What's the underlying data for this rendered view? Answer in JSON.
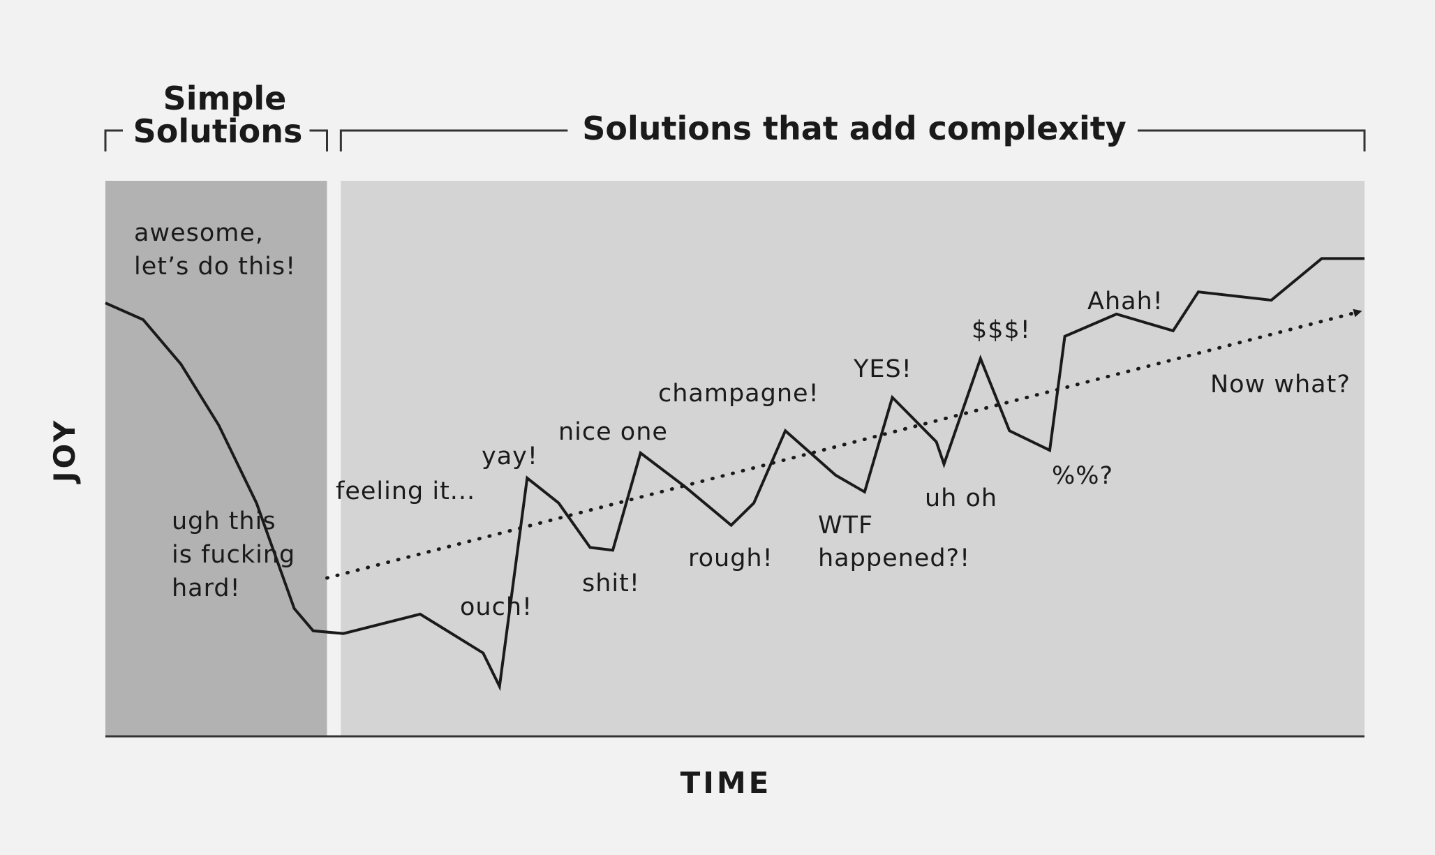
{
  "chart_data": {
    "type": "line",
    "xlabel": "TIME",
    "ylabel": "JOY",
    "xlim": [
      0,
      100
    ],
    "ylim": [
      0,
      100
    ],
    "grid": false,
    "colors": {
      "background": "#f2f2f2",
      "simple_region": "#b3b2b3",
      "complex_region": "#d5d4d5",
      "line": "#1a1a1a"
    },
    "regions": [
      {
        "name": "Simple Solutions",
        "x": [
          0,
          17.6
        ]
      },
      {
        "name": "Solutions that add complexity",
        "x": [
          18.7,
          100
        ]
      }
    ],
    "series": [
      {
        "style": "solid",
        "x": [
          0,
          3,
          6,
          9,
          12,
          15,
          16.5,
          18.9,
          25,
          30,
          31.3,
          33.5,
          36,
          38.5,
          40.3,
          42.5,
          46,
          49.7,
          51.5,
          54,
          58,
          60.3,
          62.5,
          66,
          66.6,
          69.5,
          71.8,
          75,
          76.2,
          80.3,
          84.8,
          86.8,
          92.6,
          96.6,
          100
        ],
        "y": [
          78,
          75,
          67,
          56,
          42,
          23,
          19,
          18.5,
          22,
          15,
          9,
          46.5,
          42,
          34,
          33.5,
          51,
          45,
          38,
          42,
          55,
          47,
          44,
          61,
          53,
          49,
          68,
          55,
          51.5,
          72,
          76,
          73,
          80,
          78.5,
          86,
          86
        ]
      },
      {
        "style": "dotted-arrow",
        "x": [
          17.6,
          99.7
        ],
        "y": [
          28.5,
          76.5
        ]
      }
    ],
    "annotations": [
      {
        "text": [
          "awesome,",
          "let’s do this!"
        ]
      },
      {
        "text": [
          "ugh this",
          "is fucking",
          "hard!"
        ]
      },
      {
        "text": [
          "feeling it..."
        ]
      },
      {
        "text": [
          "ouch!"
        ]
      },
      {
        "text": [
          "yay!"
        ]
      },
      {
        "text": [
          "shit!"
        ]
      },
      {
        "text": [
          "nice one"
        ]
      },
      {
        "text": [
          "rough!"
        ]
      },
      {
        "text": [
          "champagne!"
        ]
      },
      {
        "text": [
          "WTF",
          "happened?!"
        ]
      },
      {
        "text": [
          "YES!"
        ]
      },
      {
        "text": [
          "uh oh"
        ]
      },
      {
        "text": [
          "$$$!"
        ]
      },
      {
        "text": [
          "%%?"
        ]
      },
      {
        "text": [
          "Ahah!"
        ]
      },
      {
        "text": [
          "Now what?"
        ]
      }
    ],
    "headers": {
      "simple": [
        "Simple",
        "Solutions"
      ],
      "complex": "Solutions that add complexity"
    }
  }
}
